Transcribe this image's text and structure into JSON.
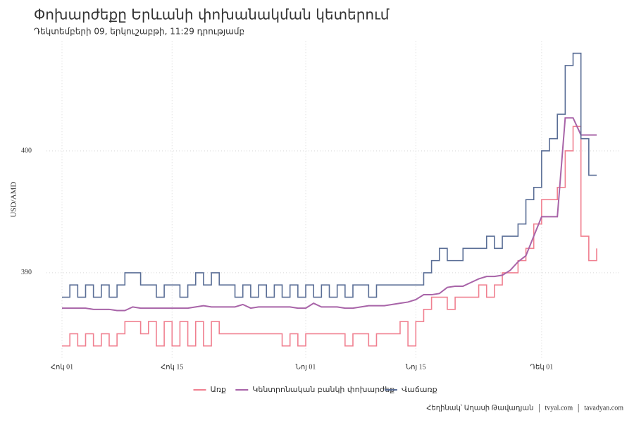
{
  "chart_data": {
    "type": "line",
    "title": "Փոխարժեքը Երևանի փոխանակման կետերում",
    "subtitle": "Դեկտեմբերի 09, երկուշաբթի, 11:29 դրությամբ",
    "y_label": "USD/AMD",
    "footer": [
      "Հեղինակ՝ Աղասի Թավադյան",
      "tvyal.com",
      "tavadyan.com"
    ],
    "x": [
      "10-01",
      "10-02",
      "10-03",
      "10-04",
      "10-05",
      "10-06",
      "10-07",
      "10-08",
      "10-09",
      "10-10",
      "10-11",
      "10-12",
      "10-13",
      "10-14",
      "10-15",
      "10-16",
      "10-17",
      "10-18",
      "10-19",
      "10-20",
      "10-21",
      "10-22",
      "10-23",
      "10-24",
      "10-25",
      "10-26",
      "10-27",
      "10-28",
      "10-29",
      "10-30",
      "10-31",
      "11-01",
      "11-02",
      "11-03",
      "11-04",
      "11-05",
      "11-06",
      "11-07",
      "11-08",
      "11-09",
      "11-10",
      "11-11",
      "11-12",
      "11-13",
      "11-14",
      "11-15",
      "11-16",
      "11-17",
      "11-18",
      "11-19",
      "11-20",
      "11-21",
      "11-22",
      "11-23",
      "11-24",
      "11-25",
      "11-26",
      "11-27",
      "11-28",
      "11-29",
      "11-30",
      "12-01",
      "12-02",
      "12-03",
      "12-04",
      "12-05",
      "12-06",
      "12-07",
      "12-08"
    ],
    "xlim": [
      "10-01",
      "12-08"
    ],
    "xticks": [
      {
        "value": "10-01",
        "label": "Հոկ 01"
      },
      {
        "value": "10-15",
        "label": "Հոկ 15"
      },
      {
        "value": "11-01",
        "label": "Նոյ 01"
      },
      {
        "value": "11-15",
        "label": "Նոյ 15"
      },
      {
        "value": "12-01",
        "label": "Դեկ 01"
      }
    ],
    "ylim": [
      383,
      409
    ],
    "yticks": [
      390,
      400
    ],
    "grid": true,
    "legend": "bottom",
    "series": [
      {
        "name": "Առք",
        "color": "#f08090",
        "shape": "step",
        "values": [
          384,
          385,
          384,
          385,
          384,
          385,
          384,
          385,
          386,
          386,
          385,
          386,
          384,
          386,
          384,
          386,
          384,
          386,
          384,
          386,
          385,
          385,
          385,
          385,
          385,
          385,
          385,
          385,
          384,
          385,
          384,
          385,
          385,
          385,
          385,
          385,
          384,
          385,
          385,
          384,
          385,
          385,
          385,
          386,
          384,
          386,
          387,
          388,
          388,
          387,
          388,
          388,
          388,
          389,
          388,
          389,
          390,
          390,
          391,
          392,
          394,
          396,
          396,
          397,
          400,
          402,
          393,
          391,
          392
        ]
      },
      {
        "name": "Կենտրոնական բանկի փոխարժեք",
        "color": "#a864a8",
        "shape": "linear",
        "values": [
          387.1,
          387.1,
          387.1,
          387.1,
          387.0,
          387.0,
          387.0,
          386.9,
          386.9,
          387.2,
          387.1,
          387.1,
          387.1,
          387.1,
          387.1,
          387.1,
          387.1,
          387.2,
          387.3,
          387.2,
          387.2,
          387.2,
          387.2,
          387.4,
          387.1,
          387.2,
          387.2,
          387.2,
          387.2,
          387.2,
          387.1,
          387.1,
          387.5,
          387.2,
          387.2,
          387.2,
          387.1,
          387.1,
          387.2,
          387.3,
          387.3,
          387.3,
          387.4,
          387.5,
          387.6,
          387.8,
          388.2,
          388.2,
          388.3,
          388.8,
          388.9,
          388.9,
          389.2,
          389.5,
          389.7,
          389.7,
          389.8,
          390.2,
          390.9,
          391.4,
          393.0,
          394.6,
          394.6,
          394.6,
          402.7,
          402.7,
          401.3,
          401.3,
          401.3
        ]
      },
      {
        "name": "Վաճառք",
        "color": "#5a6e96",
        "shape": "step",
        "values": [
          388,
          389,
          388,
          389,
          388,
          389,
          388,
          389,
          390,
          390,
          389,
          389,
          388,
          389,
          389,
          388,
          389,
          390,
          389,
          390,
          389,
          389,
          388,
          389,
          388,
          389,
          388,
          389,
          388,
          389,
          388,
          389,
          388,
          389,
          388,
          389,
          388,
          389,
          389,
          388,
          389,
          389,
          389,
          389,
          389,
          389,
          390,
          391,
          392,
          391,
          391,
          392,
          392,
          392,
          393,
          392,
          393,
          393,
          394,
          396,
          397,
          400,
          401,
          403,
          407,
          408,
          401,
          398,
          398
        ]
      }
    ]
  }
}
